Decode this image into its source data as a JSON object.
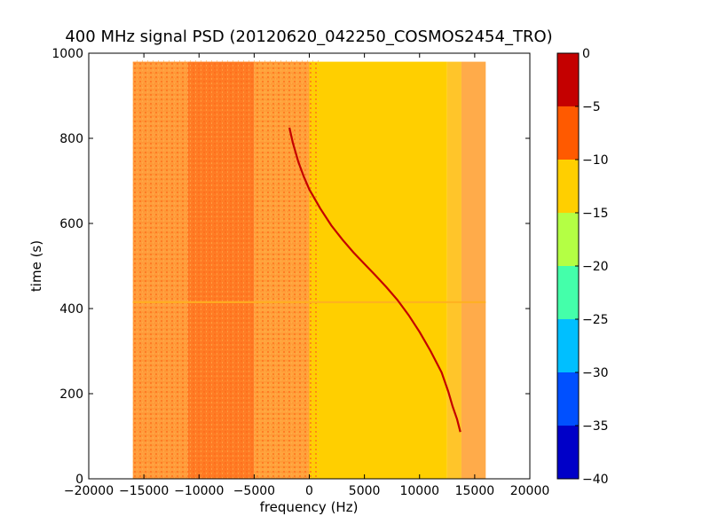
{
  "chart_data": {
    "type": "heatmap",
    "title": "400 MHz signal PSD (20120620_042250_COSMOS2454_TRO)",
    "xlabel": "frequency (Hz)",
    "ylabel": "time (s)",
    "xlim": [
      -20000,
      20000
    ],
    "ylim": [
      0,
      1000
    ],
    "xticks": [
      -20000,
      -15000,
      -10000,
      -5000,
      0,
      5000,
      10000,
      15000,
      20000
    ],
    "yticks": [
      0,
      200,
      400,
      600,
      800,
      1000
    ],
    "data_extent": {
      "x": [
        -16000,
        16000
      ],
      "y": [
        0,
        980
      ]
    },
    "bands": [
      {
        "x": [
          -16000,
          -11000
        ],
        "level": "orange-light",
        "color": "#ff9e3d"
      },
      {
        "x": [
          -11000,
          -5000
        ],
        "level": "orange-dark",
        "color": "#ff7a24"
      },
      {
        "x": [
          -5000,
          0
        ],
        "level": "orange-light",
        "color": "#ffa43d"
      },
      {
        "x": [
          0,
          12500
        ],
        "level": "yellow",
        "color": "#ffcf00"
      },
      {
        "x": [
          12500,
          13800
        ],
        "level": "yellow-light",
        "color": "#ffc52a"
      },
      {
        "x": [
          13800,
          16000
        ],
        "level": "orange-pale",
        "color": "#ffab4a"
      }
    ],
    "horizontal_streaks": [
      {
        "y": 415,
        "color": "#ffb020"
      }
    ],
    "signal_trace": {
      "color": "#c40000",
      "points": [
        [
          -1800,
          825
        ],
        [
          -1500,
          790
        ],
        [
          -1000,
          745
        ],
        [
          -500,
          710
        ],
        [
          0,
          680
        ],
        [
          1000,
          635
        ],
        [
          2000,
          595
        ],
        [
          3000,
          562
        ],
        [
          4000,
          532
        ],
        [
          5000,
          505
        ],
        [
          6000,
          478
        ],
        [
          7000,
          450
        ],
        [
          8000,
          420
        ],
        [
          9000,
          385
        ],
        [
          10000,
          345
        ],
        [
          11000,
          300
        ],
        [
          12000,
          250
        ],
        [
          12600,
          205
        ],
        [
          13000,
          170
        ],
        [
          13400,
          140
        ],
        [
          13700,
          110
        ]
      ]
    },
    "colorbar": {
      "levels": [
        {
          "range": [
            -40,
            -35
          ],
          "color": "#0000c8"
        },
        {
          "range": [
            -35,
            -30
          ],
          "color": "#0050ff"
        },
        {
          "range": [
            -30,
            -25
          ],
          "color": "#00bfff"
        },
        {
          "range": [
            -25,
            -20
          ],
          "color": "#44ffaa"
        },
        {
          "range": [
            -20,
            -15
          ],
          "color": "#b4ff44"
        },
        {
          "range": [
            -15,
            -10
          ],
          "color": "#ffcf00"
        },
        {
          "range": [
            -10,
            -5
          ],
          "color": "#ff5a00"
        },
        {
          "range": [
            -5,
            0
          ],
          "color": "#c40000"
        }
      ],
      "ticks": [
        "0",
        "−5",
        "−10",
        "−15",
        "−20",
        "−25",
        "−30",
        "−35",
        "−40"
      ],
      "tick_values": [
        0,
        -5,
        -10,
        -15,
        -20,
        -25,
        -30,
        -35,
        -40
      ]
    },
    "grid": false
  }
}
